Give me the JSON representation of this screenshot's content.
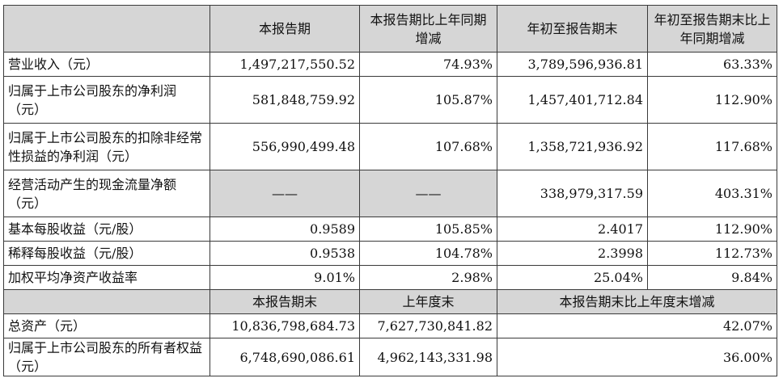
{
  "header": {
    "current_period": "本报告期",
    "yoy_change": "本报告期比上年同期增减",
    "ytd": "年初至报告期末",
    "ytd_yoy_change": "年初至报告期末比上年同期增减"
  },
  "rows": [
    {
      "label": "营业收入（元）",
      "current": "1,497,217,550.52",
      "yoy": "74.93%",
      "ytd": "3,789,596,936.81",
      "ytd_yoy": "63.33%"
    },
    {
      "label": "归属于上市公司股东的净利润（元）",
      "current": "581,848,759.92",
      "yoy": "105.87%",
      "ytd": "1,457,401,712.84",
      "ytd_yoy": "112.90%"
    },
    {
      "label": "归属于上市公司股东的扣除非经常性损益的净利润（元）",
      "current": "556,990,499.48",
      "yoy": "107.68%",
      "ytd": "1,358,721,936.92",
      "ytd_yoy": "117.68%"
    },
    {
      "label": "经营活动产生的现金流量净额（元）",
      "current": "——",
      "yoy": "——",
      "ytd": "338,979,317.59",
      "ytd_yoy": "403.31%"
    },
    {
      "label": "基本每股收益（元/股）",
      "current": "0.9589",
      "yoy": "105.85%",
      "ytd": "2.4017",
      "ytd_yoy": "112.90%"
    },
    {
      "label": "稀释每股收益（元/股）",
      "current": "0.9538",
      "yoy": "104.78%",
      "ytd": "2.3998",
      "ytd_yoy": "112.73%"
    },
    {
      "label": "加权平均净资产收益率",
      "current": "9.01%",
      "yoy": "2.98%",
      "ytd": "25.04%",
      "ytd_yoy": "9.84%"
    }
  ],
  "header2": {
    "period_end": "本报告期末",
    "prev_year_end": "上年度末",
    "change": "本报告期末比上年度末增减"
  },
  "rows2": [
    {
      "label": "总资产（元）",
      "period_end": "10,836,798,684.73",
      "prev_year_end": "7,627,730,841.82",
      "change": "42.07%"
    },
    {
      "label": "归属于上市公司股东的所有者权益（元）",
      "period_end": "6,748,690,086.61",
      "prev_year_end": "4,962,143,331.98",
      "change": "36.00%"
    }
  ]
}
